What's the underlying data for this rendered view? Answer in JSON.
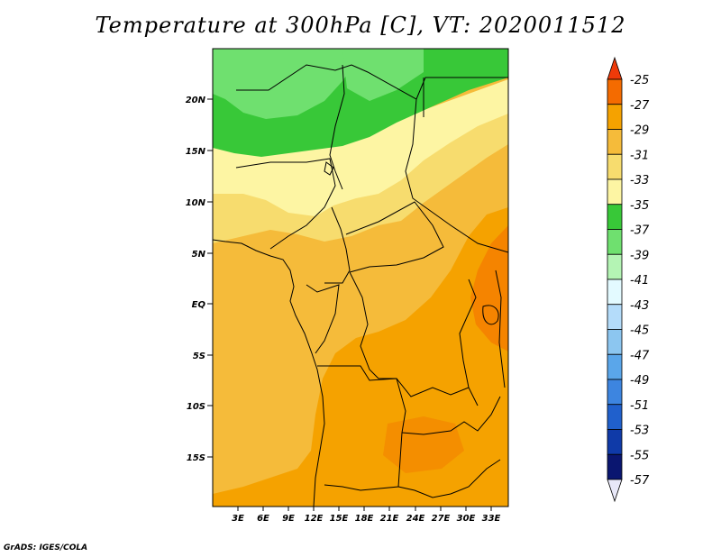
{
  "title": "Temperature at 300hPa [C], VT: 2020011512",
  "credit": "GrADS: IGES/COLA",
  "map": {
    "lat_ticks": [
      "20N",
      "15N",
      "10N",
      "5N",
      "EQ",
      "5S",
      "10S",
      "15S"
    ],
    "lon_ticks": [
      "3E",
      "6E",
      "9E",
      "12E",
      "15E",
      "18E",
      "21E",
      "24E",
      "27E",
      "30E",
      "33E"
    ],
    "region": "Central Africa",
    "field": "temperature_300hPa"
  },
  "colorbar": {
    "labels": [
      "-25",
      "-27",
      "-29",
      "-31",
      "-33",
      "-35",
      "-37",
      "-39",
      "-41",
      "-43",
      "-45",
      "-47",
      "-49",
      "-51",
      "-53",
      "-55",
      "-57"
    ],
    "colors": [
      "#ee3a09",
      "#f46b00",
      "#f5a200",
      "#f5bb3a",
      "#f7dc6e",
      "#fdf5a3",
      "#38c838",
      "#6fe06f",
      "#b4f4b4",
      "#e3faff",
      "#b4dcfa",
      "#8cc6f0",
      "#5aa6ea",
      "#3d85e0",
      "#2060cc",
      "#0f3aa8",
      "#0a1670",
      "#e8e8f8"
    ]
  }
}
